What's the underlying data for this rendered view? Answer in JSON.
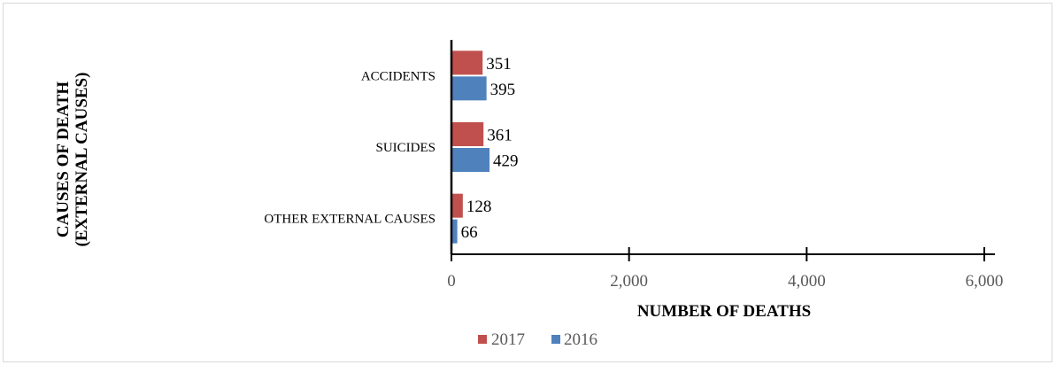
{
  "chart_data": {
    "type": "bar",
    "orientation": "horizontal",
    "categories": [
      "ACCIDENTS",
      "SUICIDES",
      "OTHER EXTERNAL CAUSES"
    ],
    "series": [
      {
        "name": "2017",
        "color": "#c0504d",
        "values": [
          351,
          361,
          128
        ]
      },
      {
        "name": "2016",
        "color": "#4f81bd",
        "values": [
          395,
          429,
          66
        ]
      }
    ],
    "value_labels": [
      [
        "351",
        "361",
        "128"
      ],
      [
        "395",
        "429",
        "66"
      ]
    ],
    "xlabel": "NUMBER OF DEATHS",
    "ylabel_lines": [
      "CAUSES OF DEATH",
      "(EXTERNAL  CAUSES)"
    ],
    "xlim": [
      0,
      6000
    ],
    "xticks": [
      0,
      2000,
      4000,
      6000
    ],
    "xtick_labels": [
      "0",
      "2,000",
      "4,000",
      "6,000"
    ],
    "grid": false,
    "legend_position": "bottom"
  }
}
